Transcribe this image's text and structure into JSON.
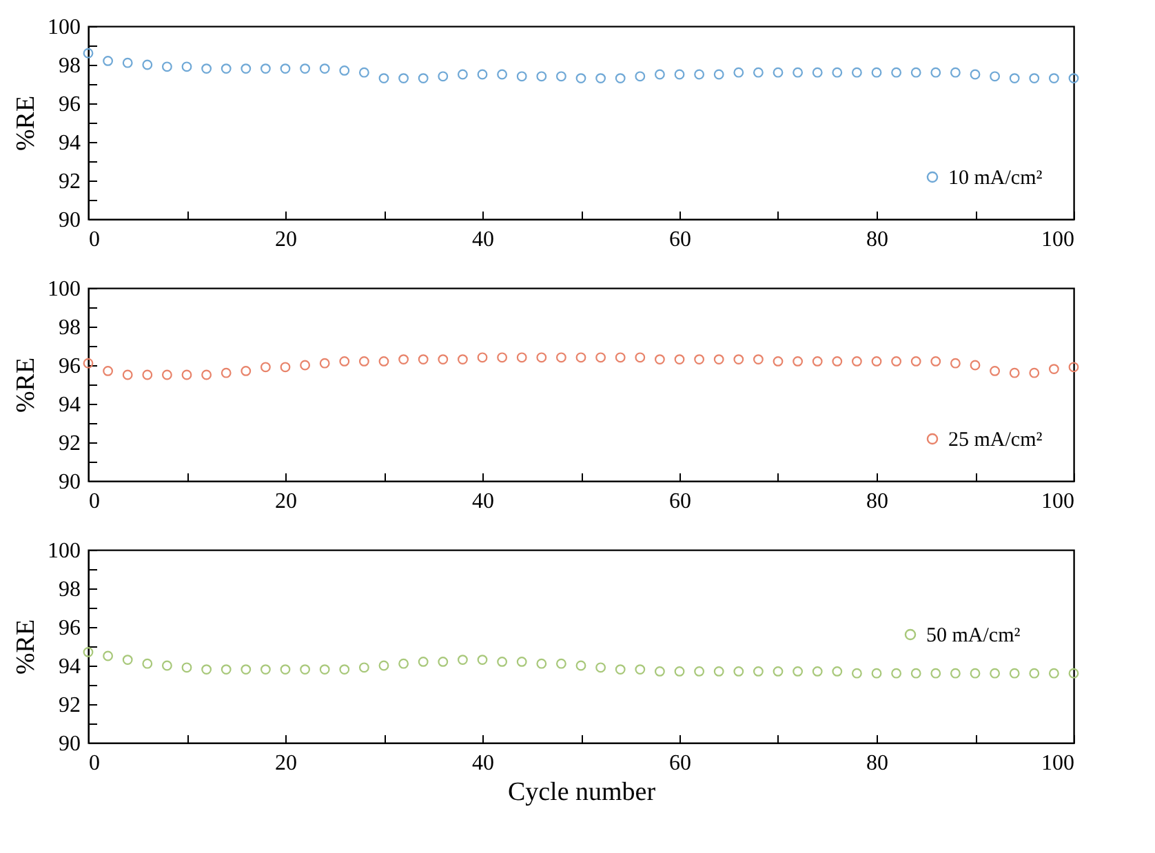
{
  "chart_data": [
    {
      "type": "scatter",
      "ylabel": "%RE",
      "x": [
        0,
        2,
        4,
        6,
        8,
        10,
        12,
        14,
        16,
        18,
        20,
        22,
        24,
        26,
        28,
        30,
        32,
        34,
        36,
        38,
        40,
        42,
        44,
        46,
        48,
        50,
        52,
        54,
        56,
        58,
        60,
        62,
        64,
        66,
        68,
        70,
        72,
        74,
        76,
        78,
        80,
        82,
        84,
        86,
        88,
        90,
        92,
        94,
        96,
        98,
        100
      ],
      "xlim": [
        0,
        100
      ],
      "xticks": [
        0,
        {
          "value": 10,
          "label": null
        },
        20,
        {
          "value": 30,
          "label": null
        },
        40,
        {
          "value": 50,
          "label": null
        },
        60,
        {
          "value": 70,
          "label": null
        },
        80,
        {
          "value": 90,
          "label": null
        },
        100
      ],
      "ylim": [
        90,
        100
      ],
      "yticks": [
        90,
        {
          "value": 91,
          "label": null
        },
        92,
        {
          "value": 93,
          "label": null
        },
        94,
        {
          "value": 95,
          "label": null
        },
        96,
        {
          "value": 97,
          "label": null
        },
        98,
        {
          "value": 99,
          "label": null
        },
        100
      ],
      "marker": "circle",
      "legend": "bottom right",
      "grid": false,
      "series": [
        {
          "name": "10 mA/cm²",
          "color": "#6fa8d6",
          "values": [
            98.6,
            98.2,
            98.1,
            98.0,
            97.9,
            97.9,
            97.8,
            97.8,
            97.8,
            97.8,
            97.8,
            97.8,
            97.8,
            97.7,
            97.6,
            97.3,
            97.3,
            97.3,
            97.4,
            97.5,
            97.5,
            97.5,
            97.4,
            97.4,
            97.4,
            97.3,
            97.3,
            97.3,
            97.4,
            97.5,
            97.5,
            97.5,
            97.5,
            97.6,
            97.6,
            97.6,
            97.6,
            97.6,
            97.6,
            97.6,
            97.6,
            97.6,
            97.6,
            97.6,
            97.6,
            97.5,
            97.4,
            97.3,
            97.3,
            97.3,
            97.3
          ]
        }
      ]
    },
    {
      "type": "scatter",
      "ylabel": "%RE",
      "x": [
        0,
        2,
        4,
        6,
        8,
        10,
        12,
        14,
        16,
        18,
        20,
        22,
        24,
        26,
        28,
        30,
        32,
        34,
        36,
        38,
        40,
        42,
        44,
        46,
        48,
        50,
        52,
        54,
        56,
        58,
        60,
        62,
        64,
        66,
        68,
        70,
        72,
        74,
        76,
        78,
        80,
        82,
        84,
        86,
        88,
        90,
        92,
        94,
        96,
        98,
        100
      ],
      "xlim": [
        0,
        100
      ],
      "xticks": [
        0,
        {
          "value": 10,
          "label": null
        },
        20,
        {
          "value": 30,
          "label": null
        },
        40,
        {
          "value": 50,
          "label": null
        },
        60,
        {
          "value": 70,
          "label": null
        },
        80,
        {
          "value": 90,
          "label": null
        },
        100
      ],
      "ylim": [
        90,
        100
      ],
      "yticks": [
        90,
        {
          "value": 91,
          "label": null
        },
        92,
        {
          "value": 93,
          "label": null
        },
        94,
        {
          "value": 95,
          "label": null
        },
        96,
        {
          "value": 97,
          "label": null
        },
        98,
        {
          "value": 99,
          "label": null
        },
        100
      ],
      "marker": "circle",
      "legend": "bottom right",
      "grid": false,
      "series": [
        {
          "name": "25 mA/cm²",
          "color": "#e8836a",
          "values": [
            96.1,
            95.7,
            95.5,
            95.5,
            95.5,
            95.5,
            95.5,
            95.6,
            95.7,
            95.9,
            95.9,
            96.0,
            96.1,
            96.2,
            96.2,
            96.2,
            96.3,
            96.3,
            96.3,
            96.3,
            96.4,
            96.4,
            96.4,
            96.4,
            96.4,
            96.4,
            96.4,
            96.4,
            96.4,
            96.3,
            96.3,
            96.3,
            96.3,
            96.3,
            96.3,
            96.2,
            96.2,
            96.2,
            96.2,
            96.2,
            96.2,
            96.2,
            96.2,
            96.2,
            96.1,
            96.0,
            95.7,
            95.6,
            95.6,
            95.8,
            95.9
          ]
        }
      ]
    },
    {
      "type": "scatter",
      "xlabel": "Cycle number",
      "ylabel": "%RE",
      "x": [
        0,
        2,
        4,
        6,
        8,
        10,
        12,
        14,
        16,
        18,
        20,
        22,
        24,
        26,
        28,
        30,
        32,
        34,
        36,
        38,
        40,
        42,
        44,
        46,
        48,
        50,
        52,
        54,
        56,
        58,
        60,
        62,
        64,
        66,
        68,
        70,
        72,
        74,
        76,
        78,
        80,
        82,
        84,
        86,
        88,
        90,
        92,
        94,
        96,
        98,
        100
      ],
      "xlim": [
        0,
        100
      ],
      "xticks": [
        0,
        {
          "value": 10,
          "label": null
        },
        20,
        {
          "value": 30,
          "label": null
        },
        40,
        {
          "value": 50,
          "label": null
        },
        60,
        {
          "value": 70,
          "label": null
        },
        80,
        {
          "value": 90,
          "label": null
        },
        100
      ],
      "ylim": [
        90,
        100
      ],
      "yticks": [
        90,
        {
          "value": 91,
          "label": null
        },
        92,
        {
          "value": 93,
          "label": null
        },
        94,
        {
          "value": 95,
          "label": null
        },
        96,
        {
          "value": 97,
          "label": null
        },
        98,
        {
          "value": 99,
          "label": null
        },
        100
      ],
      "marker": "circle",
      "legend": "right",
      "grid": false,
      "series": [
        {
          "name": "50 mA/cm²",
          "color": "#a8c87a",
          "values": [
            94.7,
            94.5,
            94.3,
            94.1,
            94.0,
            93.9,
            93.8,
            93.8,
            93.8,
            93.8,
            93.8,
            93.8,
            93.8,
            93.8,
            93.9,
            94.0,
            94.1,
            94.2,
            94.2,
            94.3,
            94.3,
            94.2,
            94.2,
            94.1,
            94.1,
            94.0,
            93.9,
            93.8,
            93.8,
            93.7,
            93.7,
            93.7,
            93.7,
            93.7,
            93.7,
            93.7,
            93.7,
            93.7,
            93.7,
            93.6,
            93.6,
            93.6,
            93.6,
            93.6,
            93.6,
            93.6,
            93.6,
            93.6,
            93.6,
            93.6,
            93.6
          ]
        }
      ]
    }
  ]
}
